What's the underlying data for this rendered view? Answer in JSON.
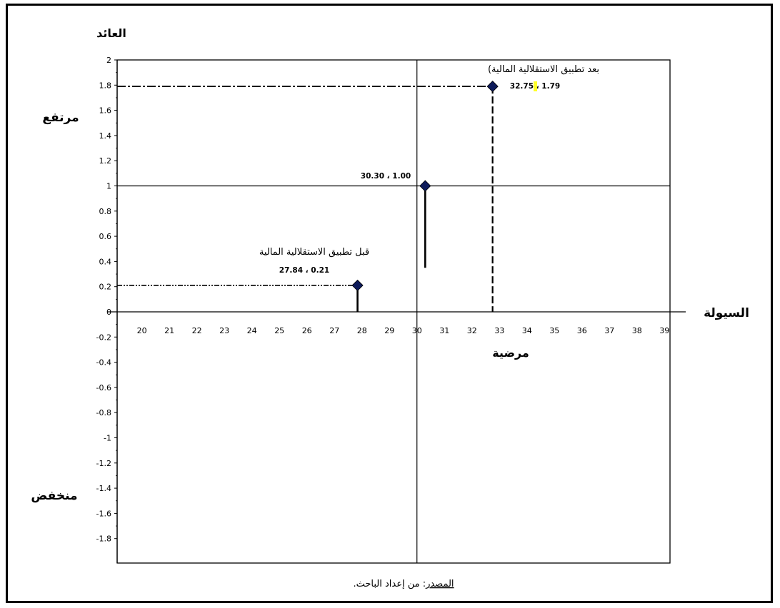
{
  "chart_data": {
    "type": "scatter",
    "title": "",
    "ylabel": "العائد",
    "xlabel": "السيولة",
    "x_zone_label": "مرضية",
    "y_high_label": "مرتفع",
    "y_low_label": "منخفض",
    "xlim": [
      19.1,
      39.2
    ],
    "ylim": [
      -2.0,
      2.0
    ],
    "y_ticks": [
      2,
      1.8,
      1.6,
      1.4,
      1.2,
      1,
      0.8,
      0.6,
      0.4,
      0.2,
      0,
      -0.2,
      -0.4,
      -0.6,
      -0.8,
      -1,
      -1.2,
      -1.4,
      -1.6,
      -1.8
    ],
    "y_tick_labels": [
      "2",
      "1.8",
      "1.6",
      "1.4",
      "1.2",
      "1",
      "0.8",
      "0.6",
      "0.4",
      "0.2",
      "0",
      "-0.2",
      "-0.4",
      "-0.6",
      "-0.8",
      "-1",
      "-1.2",
      "-1.4",
      "-1.6",
      "-1.8"
    ],
    "x_ticks": [
      20,
      21,
      22,
      23,
      24,
      25,
      26,
      27,
      28,
      29,
      30,
      31,
      32,
      33,
      34,
      35,
      36,
      37,
      38,
      39
    ],
    "x_tick_labels": [
      "20",
      "21",
      "22",
      "23",
      "24",
      "25",
      "26",
      "27",
      "28",
      "29",
      "30",
      "31",
      "32",
      "33",
      "34",
      "35",
      "36",
      "37",
      "38",
      "39"
    ],
    "reference_lines": {
      "x": 30.0,
      "y": 1.0
    },
    "marker_color": "#0d1a5a",
    "points": [
      {
        "x": 27.84,
        "y": 0.21,
        "label": "27.84 ، 0.21",
        "caption": "قبل تطبيق الاستقلالية المالية"
      },
      {
        "x": 30.3,
        "y": 1.0,
        "label": "30.30 ، 1.00",
        "caption": ""
      },
      {
        "x": 32.75,
        "y": 1.79,
        "label": "32.75 ، 1.79",
        "caption": "بعد تطبيق الاستقلالية المالية)"
      }
    ]
  },
  "source": {
    "label": "المصدر",
    "text": ": من إعداد الباحث."
  }
}
